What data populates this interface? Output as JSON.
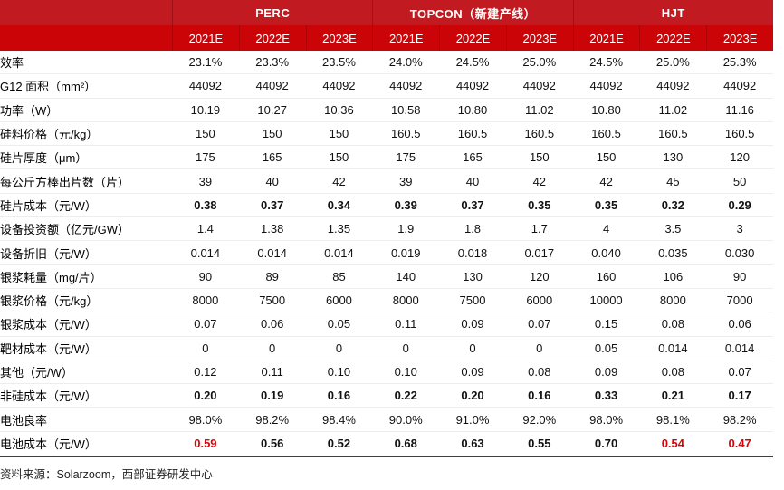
{
  "colors": {
    "header_top_red": "#c11a21",
    "header_bottom_red": "#cb0408",
    "highlight_red": "#d80309",
    "row_divider": "#ededed",
    "bottom_border": "#3f3f3f"
  },
  "header": {
    "groups": [
      {
        "label": "PERC",
        "span": 3
      },
      {
        "label": "TOPCON（新建产线）",
        "span": 3
      },
      {
        "label": "HJT",
        "span": 3
      }
    ],
    "years": [
      "2021E",
      "2022E",
      "2023E",
      "2021E",
      "2022E",
      "2023E",
      "2021E",
      "2022E",
      "2023E"
    ]
  },
  "table": {
    "rows": [
      {
        "label": "效率",
        "values": [
          "23.1%",
          "23.3%",
          "23.5%",
          "24.0%",
          "24.5%",
          "25.0%",
          "24.5%",
          "25.0%",
          "25.3%"
        ]
      },
      {
        "label": "G12 面积（mm²）",
        "values": [
          "44092",
          "44092",
          "44092",
          "44092",
          "44092",
          "44092",
          "44092",
          "44092",
          "44092"
        ]
      },
      {
        "label": "功率（W）",
        "values": [
          "10.19",
          "10.27",
          "10.36",
          "10.58",
          "10.80",
          "11.02",
          "10.80",
          "11.02",
          "11.16"
        ]
      },
      {
        "label": "硅料价格（元/kg）",
        "values": [
          "150",
          "150",
          "150",
          "160.5",
          "160.5",
          "160.5",
          "160.5",
          "160.5",
          "160.5"
        ]
      },
      {
        "label": "硅片厚度（μm）",
        "values": [
          "175",
          "165",
          "150",
          "175",
          "165",
          "150",
          "150",
          "130",
          "120"
        ]
      },
      {
        "label": "每公斤方棒出片数（片）",
        "values": [
          "39",
          "40",
          "42",
          "39",
          "40",
          "42",
          "42",
          "45",
          "50"
        ]
      },
      {
        "label": "硅片成本（元/W）",
        "bold": true,
        "values": [
          "0.38",
          "0.37",
          "0.34",
          "0.39",
          "0.37",
          "0.35",
          "0.35",
          "0.32",
          "0.29"
        ]
      },
      {
        "label": "设备投资额（亿元/GW）",
        "values": [
          "1.4",
          "1.38",
          "1.35",
          "1.9",
          "1.8",
          "1.7",
          "4",
          "3.5",
          "3"
        ]
      },
      {
        "label": "设备折旧（元/W）",
        "values": [
          "0.014",
          "0.014",
          "0.014",
          "0.019",
          "0.018",
          "0.017",
          "0.040",
          "0.035",
          "0.030"
        ]
      },
      {
        "label": "银浆耗量（mg/片）",
        "values": [
          "90",
          "89",
          "85",
          "140",
          "130",
          "120",
          "160",
          "106",
          "90"
        ]
      },
      {
        "label": "银浆价格（元/kg）",
        "values": [
          "8000",
          "7500",
          "6000",
          "8000",
          "7500",
          "6000",
          "10000",
          "8000",
          "7000"
        ]
      },
      {
        "label": "银浆成本（元/W）",
        "values": [
          "0.07",
          "0.06",
          "0.05",
          "0.11",
          "0.09",
          "0.07",
          "0.15",
          "0.08",
          "0.06"
        ]
      },
      {
        "label": "靶材成本（元/W）",
        "values": [
          "0",
          "0",
          "0",
          "0",
          "0",
          "0",
          "0.05",
          "0.014",
          "0.014"
        ]
      },
      {
        "label": "其他（元/W）",
        "values": [
          "0.12",
          "0.11",
          "0.10",
          "0.10",
          "0.09",
          "0.08",
          "0.09",
          "0.08",
          "0.07"
        ]
      },
      {
        "label": "非硅成本（元/W）",
        "bold": true,
        "values": [
          "0.20",
          "0.19",
          "0.16",
          "0.22",
          "0.20",
          "0.16",
          "0.33",
          "0.21",
          "0.17"
        ]
      },
      {
        "label": "电池良率",
        "values": [
          "98.0%",
          "98.2%",
          "98.4%",
          "90.0%",
          "91.0%",
          "92.0%",
          "98.0%",
          "98.1%",
          "98.2%"
        ]
      },
      {
        "label": "电池成本（元/W）",
        "bold": true,
        "red_cells": [
          0,
          7,
          8
        ],
        "values": [
          "0.59",
          "0.56",
          "0.52",
          "0.68",
          "0.63",
          "0.55",
          "0.70",
          "0.54",
          "0.47"
        ]
      }
    ]
  },
  "footer": {
    "source": "资料来源：Solarzoom，西部证券研发中心"
  }
}
